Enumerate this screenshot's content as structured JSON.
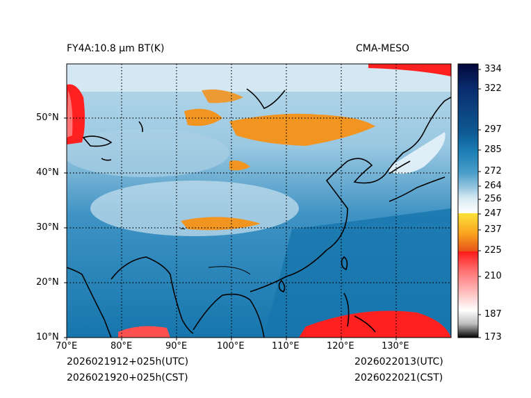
{
  "header": {
    "product_title": "FY4A:10.8 µm BT(K)",
    "model_name": "CMA-MESO"
  },
  "footer": {
    "init_utc": "2026021912+025h(UTC)",
    "init_cst": "2026021920+025h(CST)",
    "valid_utc": "2026022013(UTC)",
    "valid_cst": "2026022021(CST)"
  },
  "map": {
    "lon_labels": [
      "70°E",
      "80°E",
      "90°E",
      "100°E",
      "110°E",
      "120°E",
      "130°E"
    ],
    "lat_labels": [
      "50°N",
      "40°N",
      "30°N",
      "20°N",
      "10°N"
    ]
  },
  "colorbar": {
    "unit": "K",
    "ticks": [
      "334",
      "322",
      "297",
      "285",
      "272",
      "264",
      "256",
      "247",
      "237",
      "225",
      "210",
      "187",
      "173"
    ]
  },
  "colors": {
    "ocean_blue": "#1a7fb5",
    "land_blue": "#5ea8d0",
    "cloud_white": "#e8f2f8",
    "cold_orange": "#f08a1c",
    "cold_red": "#e62020",
    "coast_black": "#000000"
  }
}
